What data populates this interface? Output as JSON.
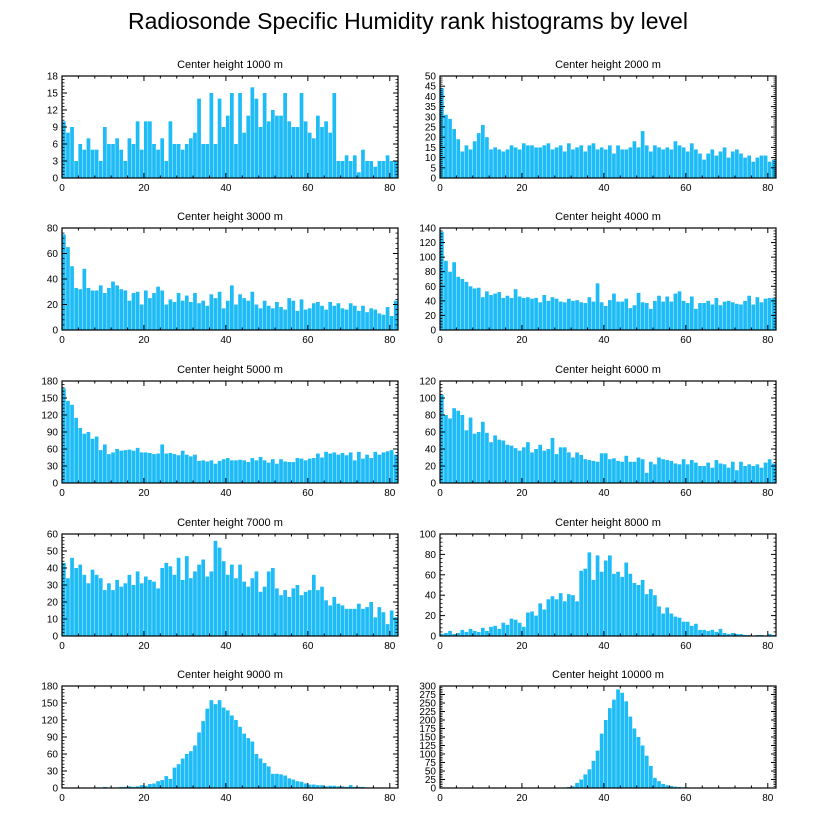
{
  "figure": {
    "title": "Radiosonde Specific Humidity rank histograms by level",
    "bar_color": "#1ebcf7",
    "axis_color": "#000000"
  },
  "chart_data": [
    {
      "type": "bar",
      "title": "Center height 1000 m",
      "xlim": [
        0,
        82
      ],
      "ylim": [
        0,
        18
      ],
      "xticks": [
        0,
        20,
        40,
        60,
        80
      ],
      "yticks": [
        0,
        3,
        6,
        9,
        12,
        15,
        18
      ],
      "values": [
        10,
        8,
        9,
        3,
        6,
        5,
        7,
        5,
        5,
        3,
        9,
        6,
        6,
        7,
        5,
        3,
        7,
        6,
        10,
        5,
        10,
        10,
        6,
        5,
        7,
        3,
        10,
        6,
        6,
        5,
        6,
        7,
        8,
        14,
        6,
        6,
        15,
        6,
        14,
        9,
        11,
        15,
        6,
        15,
        8,
        11,
        16,
        14,
        9,
        15,
        10,
        12,
        11,
        11,
        15,
        10,
        9,
        9,
        15,
        10,
        8,
        7,
        11,
        9,
        10,
        8,
        15,
        3,
        3,
        4,
        3,
        4,
        1,
        5,
        3,
        3,
        2,
        3,
        3,
        4,
        3,
        3
      ]
    },
    {
      "type": "bar",
      "title": "Center height 2000 m",
      "xlim": [
        0,
        82
      ],
      "ylim": [
        0,
        50
      ],
      "xticks": [
        0,
        20,
        40,
        60,
        80
      ],
      "yticks": [
        0,
        5,
        10,
        15,
        20,
        25,
        30,
        35,
        40,
        45,
        50
      ],
      "values": [
        44,
        31,
        29,
        24,
        19,
        13,
        16,
        14,
        18,
        22,
        26,
        20,
        14,
        15,
        14,
        13,
        14,
        16,
        15,
        14,
        17,
        16,
        16,
        15,
        15,
        16,
        17,
        14,
        15,
        16,
        13,
        17,
        14,
        15,
        16,
        13,
        16,
        17,
        14,
        15,
        14,
        16,
        12,
        16,
        14,
        14,
        15,
        18,
        15,
        23,
        16,
        13,
        16,
        15,
        14,
        15,
        14,
        18,
        16,
        15,
        13,
        17,
        14,
        12,
        9,
        12,
        14,
        11,
        13,
        15,
        10,
        13,
        14,
        12,
        10,
        11,
        8,
        10,
        11,
        11,
        8,
        9
      ]
    },
    {
      "type": "bar",
      "title": "Center height 3000 m",
      "xlim": [
        0,
        82
      ],
      "ylim": [
        0,
        80
      ],
      "xticks": [
        0,
        20,
        40,
        60,
        80
      ],
      "yticks": [
        0,
        20,
        40,
        60,
        80
      ],
      "values": [
        75,
        65,
        50,
        33,
        32,
        48,
        33,
        31,
        31,
        35,
        29,
        33,
        38,
        35,
        32,
        31,
        23,
        29,
        30,
        20,
        31,
        25,
        29,
        34,
        31,
        20,
        24,
        22,
        29,
        23,
        27,
        22,
        29,
        21,
        23,
        19,
        28,
        25,
        30,
        17,
        23,
        35,
        20,
        28,
        25,
        23,
        30,
        20,
        17,
        23,
        19,
        17,
        22,
        18,
        16,
        25,
        23,
        15,
        24,
        16,
        17,
        21,
        22,
        19,
        16,
        22,
        19,
        21,
        17,
        16,
        21,
        19,
        15,
        19,
        14,
        17,
        16,
        13,
        12,
        18,
        11,
        23
      ]
    },
    {
      "type": "bar",
      "title": "Center height 4000 m",
      "xlim": [
        0,
        82
      ],
      "ylim": [
        0,
        140
      ],
      "xticks": [
        0,
        20,
        40,
        60,
        80
      ],
      "yticks": [
        0,
        20,
        40,
        60,
        80,
        100,
        120,
        140
      ],
      "values": [
        135,
        95,
        80,
        93,
        73,
        70,
        66,
        60,
        57,
        58,
        45,
        53,
        48,
        50,
        52,
        44,
        47,
        44,
        56,
        46,
        44,
        45,
        43,
        44,
        38,
        48,
        40,
        45,
        43,
        39,
        38,
        43,
        40,
        41,
        38,
        37,
        45,
        39,
        64,
        38,
        33,
        41,
        50,
        39,
        39,
        43,
        30,
        34,
        51,
        38,
        37,
        29,
        40,
        47,
        39,
        46,
        39,
        50,
        53,
        40,
        37,
        46,
        29,
        37,
        37,
        40,
        35,
        44,
        34,
        39,
        40,
        38,
        36,
        35,
        40,
        47,
        35,
        45,
        38,
        43,
        44,
        44
      ]
    },
    {
      "type": "bar",
      "title": "Center height 5000 m",
      "xlim": [
        0,
        82
      ],
      "ylim": [
        0,
        180
      ],
      "xticks": [
        0,
        20,
        40,
        60,
        80
      ],
      "yticks": [
        0,
        30,
        60,
        90,
        120,
        150,
        180
      ],
      "values": [
        167,
        145,
        138,
        115,
        97,
        87,
        90,
        78,
        82,
        58,
        68,
        51,
        54,
        60,
        57,
        58,
        59,
        57,
        62,
        54,
        54,
        53,
        51,
        52,
        68,
        52,
        53,
        51,
        49,
        57,
        50,
        47,
        50,
        39,
        40,
        38,
        40,
        34,
        39,
        42,
        44,
        40,
        40,
        41,
        40,
        37,
        44,
        40,
        46,
        40,
        36,
        42,
        34,
        42,
        38,
        37,
        37,
        44,
        43,
        40,
        43,
        44,
        52,
        45,
        55,
        52,
        54,
        50,
        53,
        49,
        54,
        40,
        55,
        43,
        50,
        44,
        55,
        50,
        54,
        56,
        58,
        50
      ]
    },
    {
      "type": "bar",
      "title": "Center height 6000 m",
      "xlim": [
        0,
        82
      ],
      "ylim": [
        0,
        120
      ],
      "xticks": [
        0,
        20,
        40,
        60,
        80
      ],
      "yticks": [
        0,
        20,
        40,
        60,
        80,
        100,
        120
      ],
      "values": [
        104,
        80,
        76,
        88,
        85,
        80,
        62,
        77,
        58,
        60,
        72,
        59,
        48,
        56,
        51,
        50,
        45,
        44,
        41,
        38,
        42,
        48,
        36,
        40,
        45,
        38,
        40,
        53,
        34,
        42,
        42,
        36,
        30,
        36,
        33,
        28,
        27,
        26,
        25,
        35,
        35,
        28,
        29,
        26,
        25,
        32,
        25,
        25,
        30,
        28,
        12,
        25,
        22,
        30,
        28,
        27,
        26,
        23,
        22,
        28,
        22,
        27,
        24,
        20,
        20,
        24,
        18,
        27,
        23,
        22,
        18,
        25,
        15,
        25,
        20,
        22,
        20,
        22,
        18,
        24,
        28,
        23
      ]
    },
    {
      "type": "bar",
      "title": "Center height 7000 m",
      "xlim": [
        0,
        82
      ],
      "ylim": [
        0,
        60
      ],
      "xticks": [
        0,
        20,
        40,
        60,
        80
      ],
      "yticks": [
        0,
        10,
        20,
        30,
        40,
        50,
        60
      ],
      "values": [
        43,
        34,
        46,
        40,
        42,
        36,
        31,
        39,
        36,
        34,
        27,
        31,
        27,
        33,
        29,
        31,
        36,
        30,
        38,
        31,
        35,
        33,
        32,
        28,
        40,
        43,
        41,
        36,
        46,
        33,
        47,
        34,
        38,
        42,
        45,
        35,
        38,
        56,
        52,
        44,
        36,
        42,
        34,
        42,
        32,
        29,
        34,
        38,
        26,
        29,
        38,
        40,
        28,
        24,
        27,
        23,
        28,
        30,
        24,
        26,
        27,
        36,
        27,
        29,
        21,
        18,
        23,
        19,
        18,
        16,
        16,
        16,
        19,
        16,
        17,
        20,
        11,
        17,
        14,
        7,
        15,
        11
      ]
    },
    {
      "type": "bar",
      "title": "Center height 8000 m",
      "xlim": [
        0,
        82
      ],
      "ylim": [
        0,
        100
      ],
      "xticks": [
        0,
        20,
        40,
        60,
        80
      ],
      "yticks": [
        0,
        20,
        40,
        60,
        80,
        100
      ],
      "values": [
        2,
        3,
        5,
        2,
        3,
        6,
        4,
        7,
        5,
        4,
        8,
        5,
        9,
        10,
        7,
        13,
        11,
        17,
        16,
        13,
        9,
        23,
        24,
        20,
        32,
        26,
        36,
        39,
        36,
        42,
        34,
        41,
        40,
        34,
        64,
        66,
        82,
        55,
        79,
        63,
        74,
        79,
        61,
        63,
        58,
        72,
        61,
        52,
        50,
        55,
        41,
        46,
        40,
        29,
        22,
        28,
        22,
        19,
        18,
        14,
        14,
        10,
        12,
        6,
        6,
        5,
        6,
        4,
        7,
        3,
        2,
        3,
        2,
        2,
        1,
        1,
        0,
        1,
        1,
        0,
        2,
        1
      ]
    },
    {
      "type": "bar",
      "title": "Center height 9000 m",
      "xlim": [
        0,
        82
      ],
      "ylim": [
        0,
        180
      ],
      "xticks": [
        0,
        20,
        40,
        60,
        80
      ],
      "yticks": [
        0,
        30,
        60,
        90,
        120,
        150,
        180
      ],
      "values": [
        0,
        0,
        0,
        0,
        0,
        1,
        0,
        0,
        1,
        0,
        2,
        1,
        0,
        1,
        2,
        2,
        3,
        2,
        3,
        5,
        4,
        7,
        8,
        12,
        14,
        21,
        16,
        36,
        42,
        52,
        60,
        65,
        75,
        98,
        118,
        140,
        155,
        148,
        155,
        142,
        137,
        128,
        120,
        108,
        96,
        88,
        82,
        60,
        52,
        44,
        38,
        25,
        25,
        24,
        22,
        17,
        15,
        12,
        11,
        8,
        6,
        6,
        5,
        5,
        3,
        4,
        4,
        3,
        3,
        2,
        5,
        2,
        2,
        2,
        1,
        1,
        0,
        1,
        1,
        0,
        0,
        0
      ]
    },
    {
      "type": "bar",
      "title": "Center height 10000 m",
      "xlim": [
        0,
        82
      ],
      "ylim": [
        0,
        300
      ],
      "xticks": [
        0,
        20,
        40,
        60,
        80
      ],
      "yticks": [
        0,
        25,
        50,
        75,
        100,
        125,
        150,
        175,
        200,
        225,
        250,
        275,
        300
      ],
      "values": [
        0,
        0,
        0,
        0,
        0,
        0,
        0,
        0,
        0,
        0,
        0,
        0,
        0,
        0,
        0,
        0,
        0,
        0,
        0,
        0,
        0,
        0,
        0,
        0,
        0,
        0,
        0,
        0,
        0,
        1,
        1,
        3,
        5,
        15,
        25,
        40,
        55,
        80,
        110,
        160,
        200,
        235,
        260,
        290,
        280,
        255,
        210,
        175,
        150,
        125,
        95,
        65,
        30,
        20,
        12,
        8,
        6,
        4,
        3,
        2,
        2,
        1,
        1,
        1,
        0,
        0,
        0,
        0,
        0,
        0,
        0,
        0,
        0,
        0,
        0,
        0,
        0,
        0,
        0,
        0,
        0,
        0
      ]
    }
  ]
}
